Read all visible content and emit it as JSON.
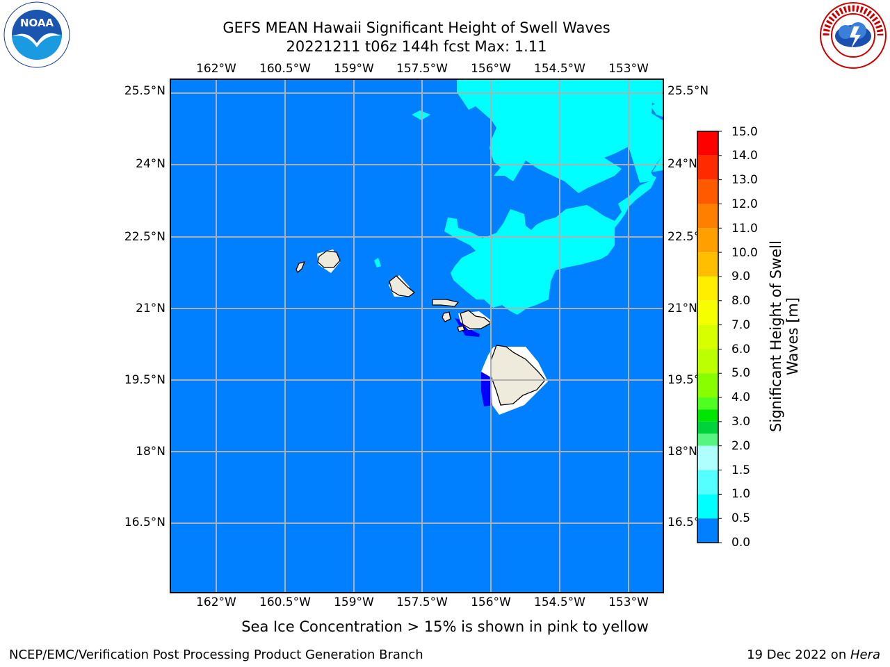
{
  "title": {
    "line1": "GEFS MEAN Hawaii Significant Height of Swell Waves",
    "line2": "20221211 t06z 144h fcst   Max: 1.11"
  },
  "logos": {
    "left": "NOAA",
    "right": "NATIONAL WEATHER SERVICE"
  },
  "map": {
    "lon_ticks": [
      "162°W",
      "160.5°W",
      "159°W",
      "157.5°W",
      "156°W",
      "154.5°W",
      "153°W"
    ],
    "lat_ticks": [
      "25.5°N",
      "24°N",
      "22.5°N",
      "21°N",
      "19.5°N",
      "18°N",
      "16.5°N"
    ],
    "colors": {
      "ocean": "#0080ff",
      "swell_1_1_5": "#00ffff",
      "swell_0_0_5": "#0000ff",
      "land": "#eeebdc",
      "grid": "#b0b0b0"
    }
  },
  "colorbar": {
    "label": "Significant Height of Swell Waves [m]",
    "ticks": [
      "15.0",
      "14.0",
      "13.0",
      "12.0",
      "11.0",
      "10.0",
      "9.0",
      "8.0",
      "7.0",
      "6.0",
      "5.0",
      "4.0",
      "3.0",
      "2.0",
      "1.5",
      "1.0",
      "0.5",
      "0.0"
    ],
    "bands": [
      "#ff0000",
      "#ff2a00",
      "#ff5a00",
      "#ff7f00",
      "#ff9f00",
      "#ffbf00",
      "#ffee00",
      "#f5ff00",
      "#d8ff00",
      "#bbff00",
      "#88ff00",
      "#4fff1f",
      "#00e600",
      "#00d23c",
      "#55f580",
      "#b0ffff",
      "#55ffff",
      "#00ffff",
      "#0080ff",
      "#0000ff"
    ]
  },
  "subtitle": "Sea Ice Concentration > 15% is shown in pink to yellow",
  "footer": {
    "left": "NCEP/EMC/Verification Post Processing Product Generation Branch",
    "date": "19 Dec 2022 on ",
    "machine": "Hera"
  }
}
